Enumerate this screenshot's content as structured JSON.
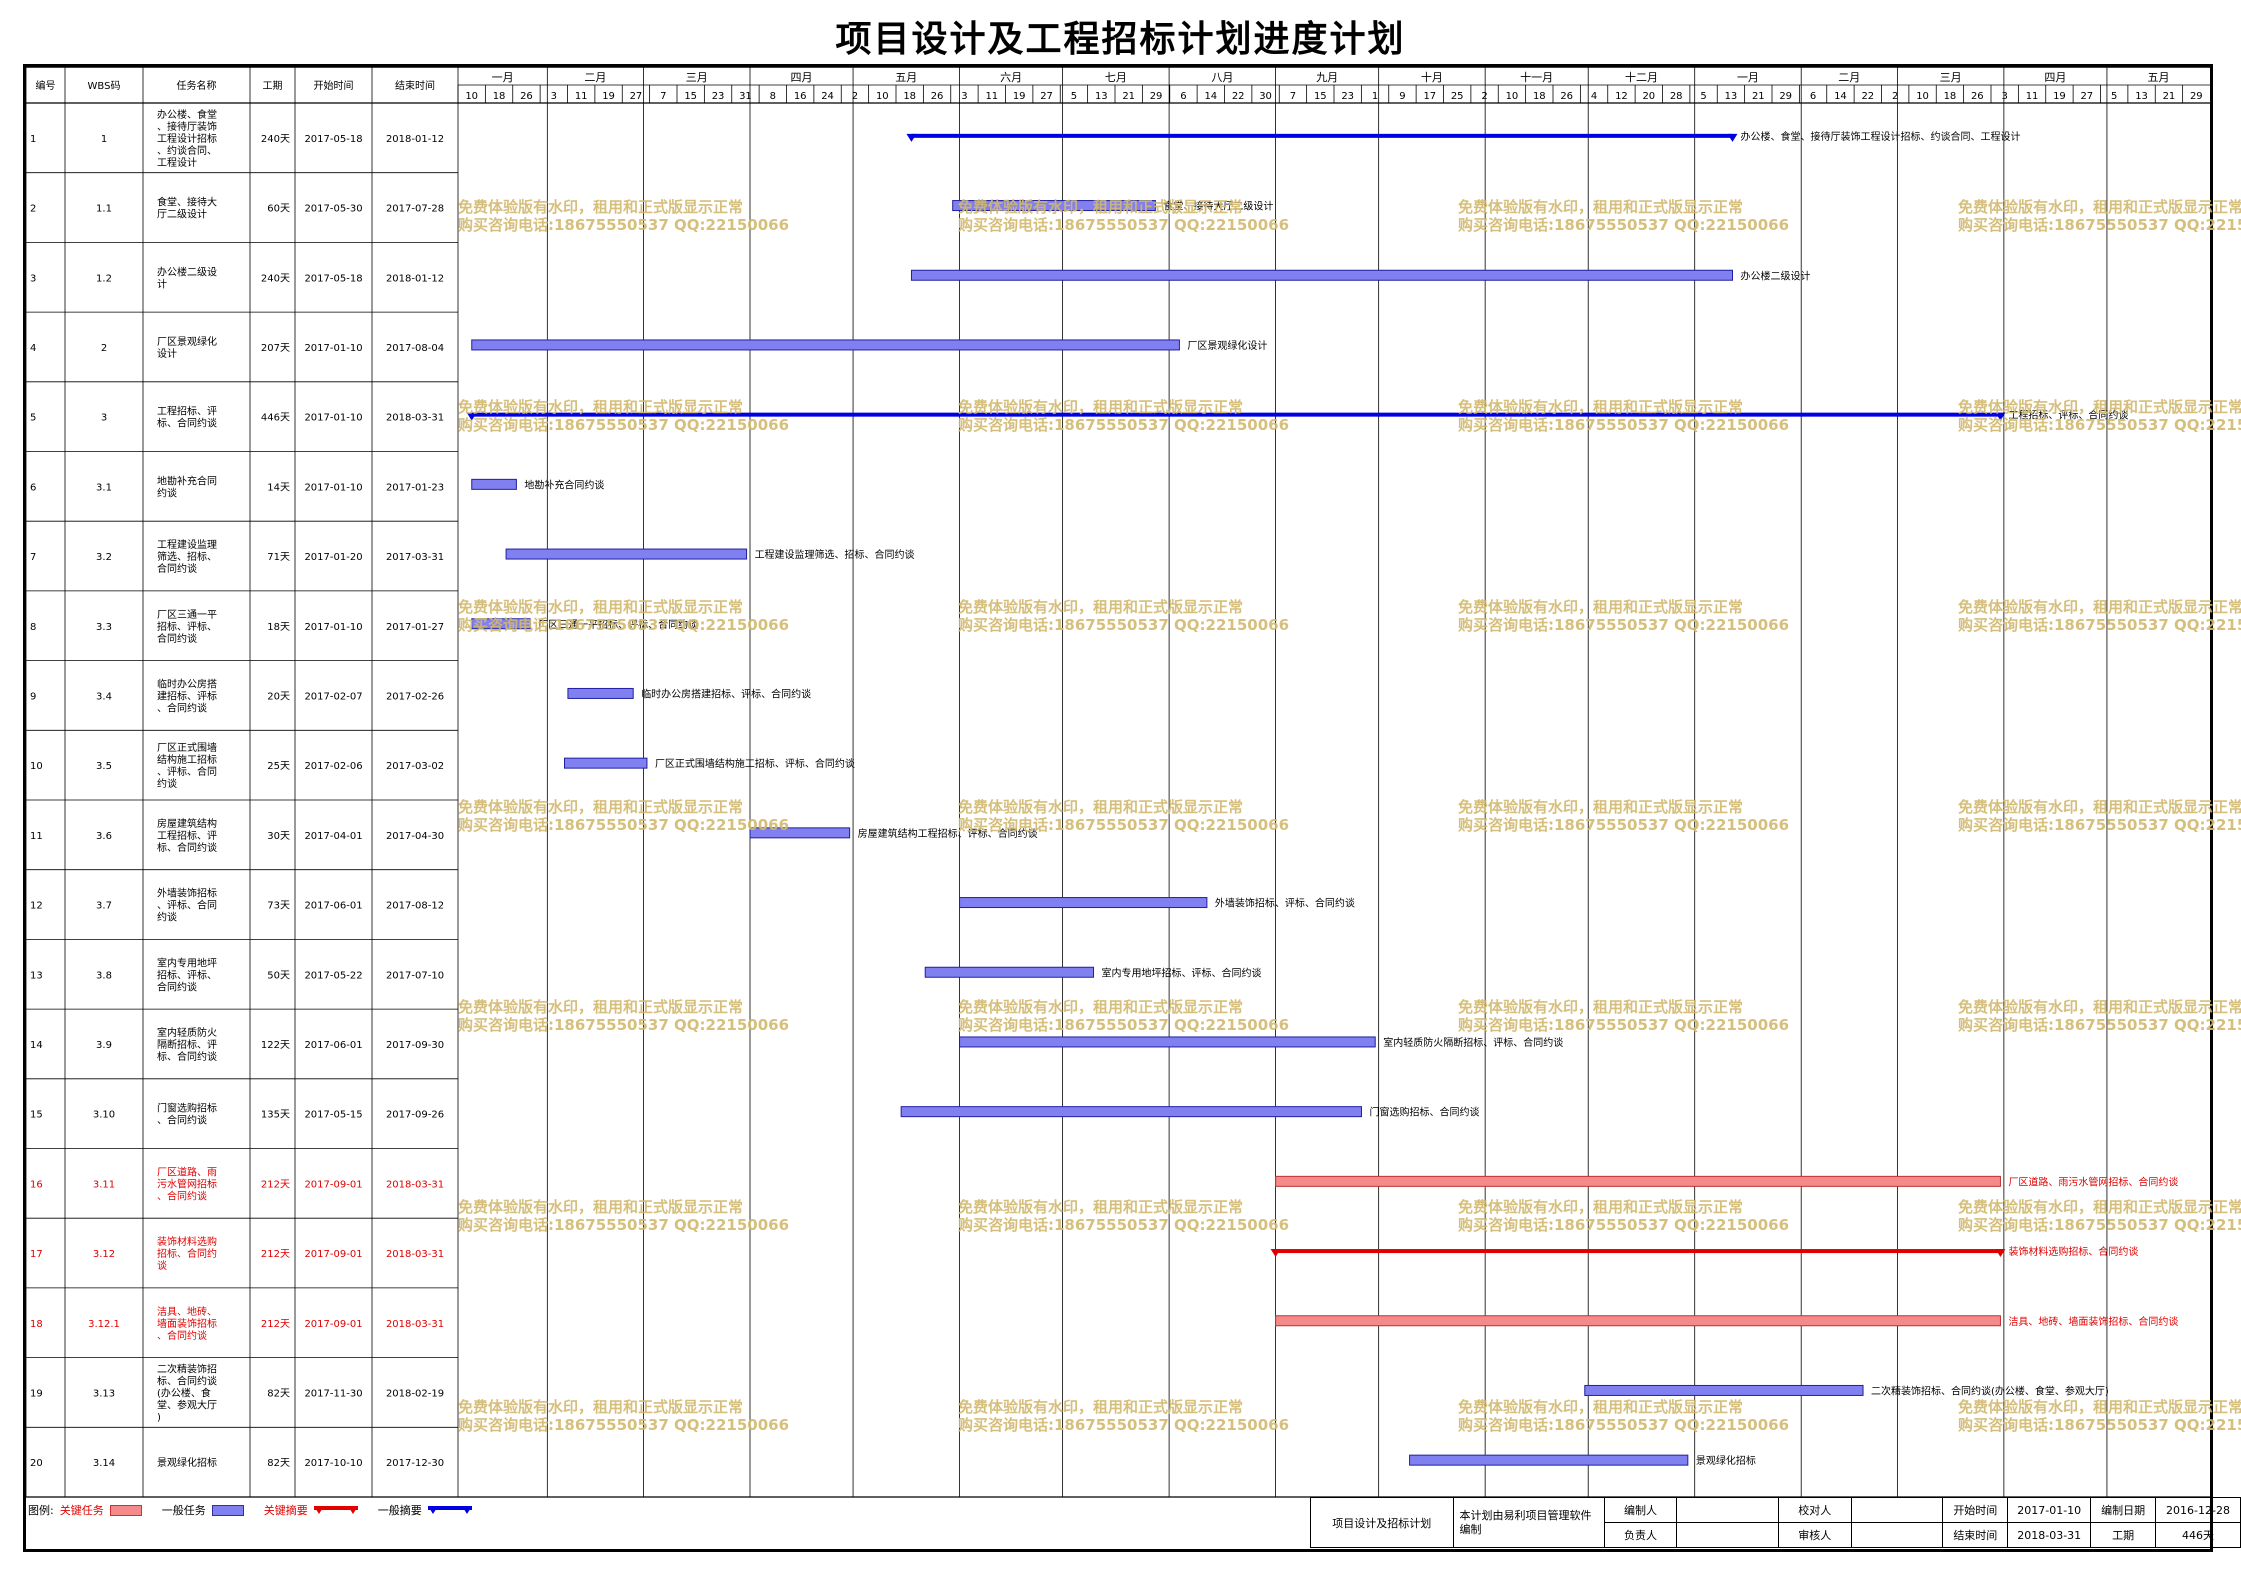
{
  "title": "项目设计及工程招标计划进度计划",
  "columns": [
    "编号",
    "WBS码",
    "任务名称",
    "工期",
    "开始时间",
    "结束时间"
  ],
  "timeline": {
    "months": [
      "一月",
      "二月",
      "三月",
      "四月",
      "五月",
      "六月",
      "七月",
      "八月",
      "九月",
      "十月",
      "十一月",
      "十二月",
      "一月",
      "二月",
      "三月",
      "四月",
      "五月"
    ],
    "weeks": [
      "10",
      "18",
      "26",
      "3",
      "11",
      "19",
      "27",
      "7",
      "15",
      "23",
      "31",
      "8",
      "16",
      "24",
      "2",
      "10",
      "18",
      "26",
      "3",
      "11",
      "19",
      "27",
      "5",
      "13",
      "21",
      "29",
      "6",
      "14",
      "22",
      "30",
      "7",
      "15",
      "23",
      "1",
      "9",
      "17",
      "25",
      "2",
      "10",
      "18",
      "26",
      "4",
      "12",
      "20",
      "28",
      "5",
      "13",
      "21",
      "29",
      "6",
      "14",
      "22",
      "2",
      "10",
      "18",
      "26",
      "3",
      "11",
      "19",
      "27",
      "5",
      "13",
      "21",
      "29"
    ],
    "start": "2017-01-06",
    "end": "2018-05-31"
  },
  "chart_data": {
    "type": "gantt",
    "tasks": [
      {
        "id": "1",
        "wbs": "1",
        "name": "办公楼、食堂、接待厅装饰工程设计招标、约谈合同、工程设计",
        "duration": "240天",
        "start": "2017-05-18",
        "end": "2018-01-12",
        "kind": "summary",
        "label": "办公楼、食堂、接待厅装饰工程设计招标、约谈合同、工程设计"
      },
      {
        "id": "2",
        "wbs": "1.1",
        "name": "食堂、接待大厅二级设计",
        "duration": "60天",
        "start": "2017-05-30",
        "end": "2017-07-28",
        "kind": "task",
        "label": "食堂、接待大厅二级设计"
      },
      {
        "id": "3",
        "wbs": "1.2",
        "name": "办公楼二级设计",
        "duration": "240天",
        "start": "2017-05-18",
        "end": "2018-01-12",
        "kind": "task",
        "label": "办公楼二级设计"
      },
      {
        "id": "4",
        "wbs": "2",
        "name": "厂区景观绿化设计",
        "duration": "207天",
        "start": "2017-01-10",
        "end": "2017-08-04",
        "kind": "task",
        "label": "厂区景观绿化设计"
      },
      {
        "id": "5",
        "wbs": "3",
        "name": "工程招标、评标、合同约谈",
        "duration": "446天",
        "start": "2017-01-10",
        "end": "2018-03-31",
        "kind": "summary",
        "label": "工程招标、评标、合同约谈"
      },
      {
        "id": "6",
        "wbs": "3.1",
        "name": "地勘补充合同约谈",
        "duration": "14天",
        "start": "2017-01-10",
        "end": "2017-01-23",
        "kind": "task",
        "label": "地勘补充合同约谈"
      },
      {
        "id": "7",
        "wbs": "3.2",
        "name": "工程建设监理筛选、招标、合同约谈",
        "duration": "71天",
        "start": "2017-01-20",
        "end": "2017-03-31",
        "kind": "task",
        "label": "工程建设监理筛选、招标、合同约谈"
      },
      {
        "id": "8",
        "wbs": "3.3",
        "name": "厂区三通一平招标、评标、合同约谈",
        "duration": "18天",
        "start": "2017-01-10",
        "end": "2017-01-27",
        "kind": "task",
        "label": "厂区三通一平招标、评标、合同约谈"
      },
      {
        "id": "9",
        "wbs": "3.4",
        "name": "临时办公房搭建招标、评标、合同约谈",
        "duration": "20天",
        "start": "2017-02-07",
        "end": "2017-02-26",
        "kind": "task",
        "label": "临时办公房搭建招标、评标、合同约谈"
      },
      {
        "id": "10",
        "wbs": "3.5",
        "name": "厂区正式围墙结构施工招标、评标、合同约谈",
        "duration": "25天",
        "start": "2017-02-06",
        "end": "2017-03-02",
        "kind": "task",
        "label": "厂区正式围墙结构施工招标、评标、合同约谈"
      },
      {
        "id": "11",
        "wbs": "3.6",
        "name": "房屋建筑结构工程招标、评标、合同约谈",
        "duration": "30天",
        "start": "2017-04-01",
        "end": "2017-04-30",
        "kind": "task",
        "label": "房屋建筑结构工程招标、评标、合同约谈"
      },
      {
        "id": "12",
        "wbs": "3.7",
        "name": "外墙装饰招标、评标、合同约谈",
        "duration": "73天",
        "start": "2017-06-01",
        "end": "2017-08-12",
        "kind": "task",
        "label": "外墙装饰招标、评标、合同约谈"
      },
      {
        "id": "13",
        "wbs": "3.8",
        "name": "室内专用地坪招标、评标、合同约谈",
        "duration": "50天",
        "start": "2017-05-22",
        "end": "2017-07-10",
        "kind": "task",
        "label": "室内专用地坪招标、评标、合同约谈"
      },
      {
        "id": "14",
        "wbs": "3.9",
        "name": "室内轻质防火隔断招标、评标、合同约谈",
        "duration": "122天",
        "start": "2017-06-01",
        "end": "2017-09-30",
        "kind": "task",
        "label": "室内轻质防火隔断招标、评标、合同约谈"
      },
      {
        "id": "15",
        "wbs": "3.10",
        "name": "门窗选购招标、合同约谈",
        "duration": "135天",
        "start": "2017-05-15",
        "end": "2017-09-26",
        "kind": "task",
        "label": "门窗选购招标、合同约谈"
      },
      {
        "id": "16",
        "wbs": "3.11",
        "name": "厂区道路、雨污水管网招标、合同约谈",
        "duration": "212天",
        "start": "2017-09-01",
        "end": "2018-03-31",
        "kind": "critical",
        "label": "厂区道路、雨污水管网招标、合同约谈"
      },
      {
        "id": "17",
        "wbs": "3.12",
        "name": "装饰材料选购招标、合同约谈",
        "duration": "212天",
        "start": "2017-09-01",
        "end": "2018-03-31",
        "kind": "critical-summary",
        "label": "装饰材料选购招标、合同约谈"
      },
      {
        "id": "18",
        "wbs": "3.12.1",
        "name": "洁具、地砖、墙面装饰招标、合同约谈",
        "duration": "212天",
        "start": "2017-09-01",
        "end": "2018-03-31",
        "kind": "critical",
        "label": "洁具、地砖、墙面装饰招标、合同约谈"
      },
      {
        "id": "19",
        "wbs": "3.13",
        "name": "二次精装饰招标、合同约谈(办公楼、食堂、参观大厅)",
        "duration": "82天",
        "start": "2017-11-30",
        "end": "2018-02-19",
        "kind": "task",
        "label": "二次精装饰招标、合同约谈(办公楼、食堂、参观大厅)"
      },
      {
        "id": "20",
        "wbs": "3.14",
        "name": "景观绿化招标",
        "duration": "82天",
        "start": "2017-10-10",
        "end": "2017-12-30",
        "kind": "task",
        "label": "景观绿化招标"
      }
    ]
  },
  "watermark": {
    "line1": "免费体验版有水印，租用和正式版显示正常",
    "line2": "购买咨询电话:18675550537 QQ:22150066"
  },
  "legend": {
    "prefix": "图例:",
    "critical": "关键任务",
    "task": "一般任务",
    "critical_summary": "关键摘要",
    "summary": "一般摘要"
  },
  "footer": {
    "project": "项目设计及招标计划",
    "note": "本计划由易利项目管理软件编制",
    "editor_label": "编制人",
    "checker_label": "校对人",
    "owner_label": "负责人",
    "reviewer_label": "审核人",
    "start_label": "开始时间",
    "start_value": "2017-01-10",
    "end_label": "结束时间",
    "end_value": "2018-03-31",
    "date_label": "编制日期",
    "date_value": "2016-12-28",
    "duration_label": "工期",
    "duration_value": "446天"
  },
  "colors": {
    "task_fill": "#8080f0",
    "task_border": "#2020a0",
    "summary": "#0000e0",
    "critical_fill": "#f48a8a",
    "critical_border": "#c03030",
    "critical_summary": "#e00000",
    "critical_text": "#e00000",
    "watermark": "#d2b96e"
  }
}
